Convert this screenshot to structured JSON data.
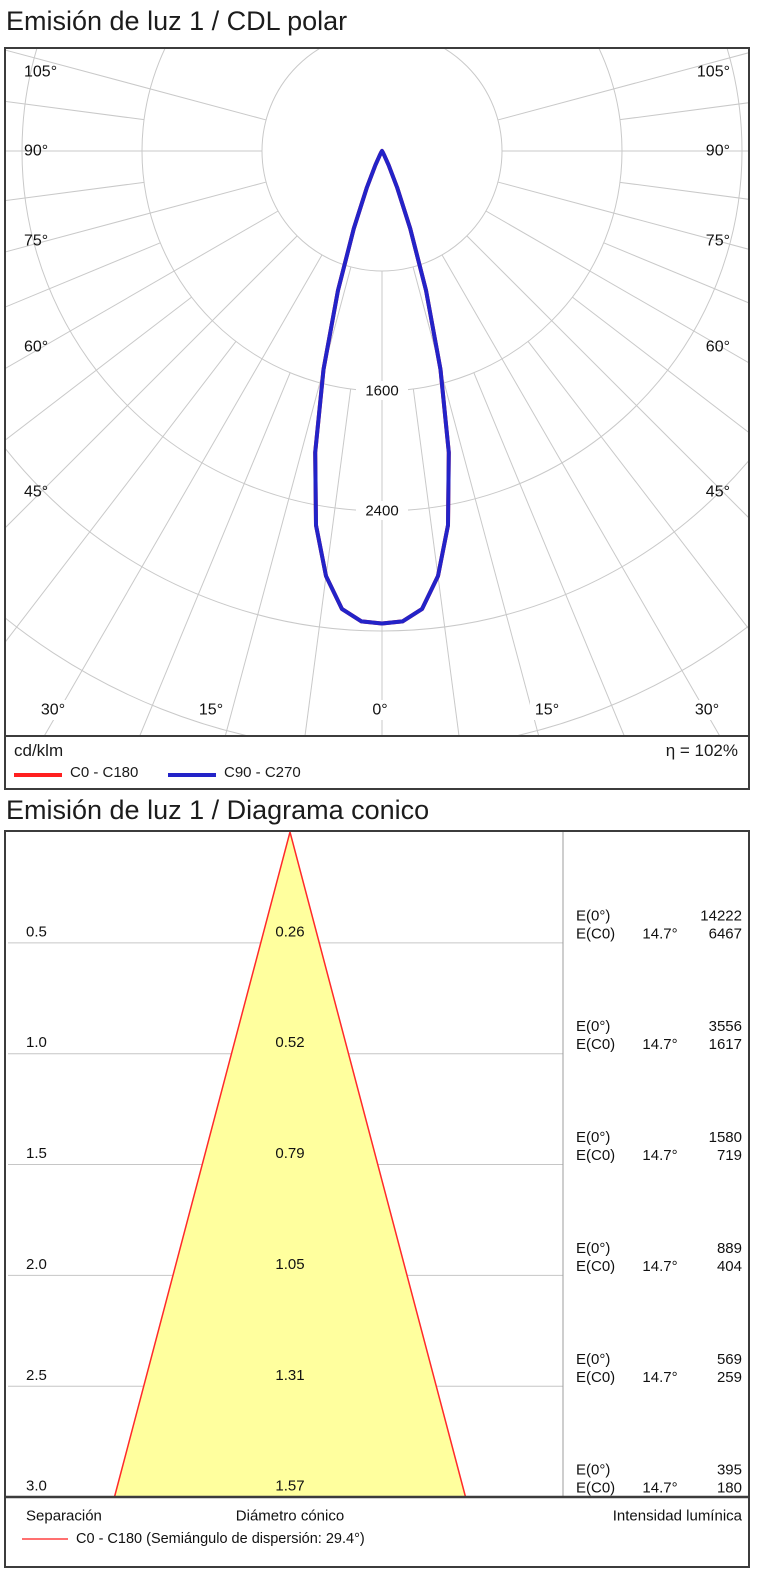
{
  "polar_section": {
    "title": "Emisión de luz 1 / CDL polar",
    "unit_label": "cd/klm",
    "efficiency_label": "η = 102%",
    "legend": [
      {
        "label": "C0 - C180",
        "color": "#ff2020"
      },
      {
        "label": "C90 - C270",
        "color": "#2323c8"
      }
    ],
    "chart_data": {
      "type": "line",
      "coordinate_system": "polar, 0° pointing down, angles every 15°",
      "unit": "cd/klm",
      "eta_percent": 102,
      "grid_circles_cd_klm": [
        800,
        1600,
        2400,
        3200,
        4000
      ],
      "ring_labels": [
        "1600",
        "2400"
      ],
      "side_angle_labels": [
        "105°",
        "90°",
        "75°",
        "60°",
        "45°"
      ],
      "bottom_angle_labels": [
        "30°",
        "15°",
        "0°",
        "15°",
        "30°"
      ],
      "max_intensity_cd_klm": 3150,
      "beam_half_angle_deg": 14.7,
      "series": [
        {
          "name": "C0 - C180",
          "color": "#ff2020",
          "note": "coincides with C90 - C270, hidden beneath it"
        },
        {
          "name": "C90 - C270",
          "color": "#2323c8"
        }
      ],
      "samples": {
        "gamma_deg": [
          0,
          2.5,
          5,
          7.5,
          10,
          12.5,
          15,
          17.5,
          20,
          22.5,
          25,
          27.5,
          30,
          32.5,
          35
        ],
        "intensity_cd_klm": [
          3150,
          3139,
          3064,
          2858,
          2533,
          2058,
          1508,
          977,
          550,
          263,
          104,
          33,
          9,
          2,
          0
        ]
      },
      "grid_color": "#c9c9c9"
    }
  },
  "cone_section": {
    "title": "Emisión de luz 1 / Diagrama conico",
    "footer_columns": [
      "Separación",
      "Diámetro cónico",
      "Intensidad lumínica"
    ],
    "legend_label": "C0 - C180 (Semiángulo de dispersión: 29.4°)",
    "legend_color": "#ff7070",
    "chart_data": {
      "type": "table",
      "cone_fill": "#ffff9e",
      "cone_edge_color": "#ff2a2a",
      "beam_semiangle_deg": 29.4,
      "e_row1_label": "E(0°)",
      "e_row2_label": "E(C0)",
      "rows": [
        {
          "separation": "0.5",
          "diameter": "0.26",
          "e0": "14222",
          "angle": "14.7°",
          "ec0": "6467"
        },
        {
          "separation": "1.0",
          "diameter": "0.52",
          "e0": "3556",
          "angle": "14.7°",
          "ec0": "1617"
        },
        {
          "separation": "1.5",
          "diameter": "0.79",
          "e0": "1580",
          "angle": "14.7°",
          "ec0": "719"
        },
        {
          "separation": "2.0",
          "diameter": "1.05",
          "e0": "889",
          "angle": "14.7°",
          "ec0": "404"
        },
        {
          "separation": "2.5",
          "diameter": "1.31",
          "e0": "569",
          "angle": "14.7°",
          "ec0": "259"
        },
        {
          "separation": "3.0",
          "diameter": "1.57",
          "e0": "395",
          "angle": "14.7°",
          "ec0": "180"
        }
      ],
      "separations_m": [
        0.5,
        1.0,
        1.5,
        2.0,
        2.5,
        3.0
      ],
      "diameters_m": [
        0.26,
        0.52,
        0.79,
        1.05,
        1.31,
        1.57
      ],
      "E0_lx": [
        14222,
        3556,
        1580,
        889,
        569,
        395
      ],
      "EC0_lx": [
        6467,
        1617,
        719,
        404,
        259,
        180
      ]
    }
  }
}
